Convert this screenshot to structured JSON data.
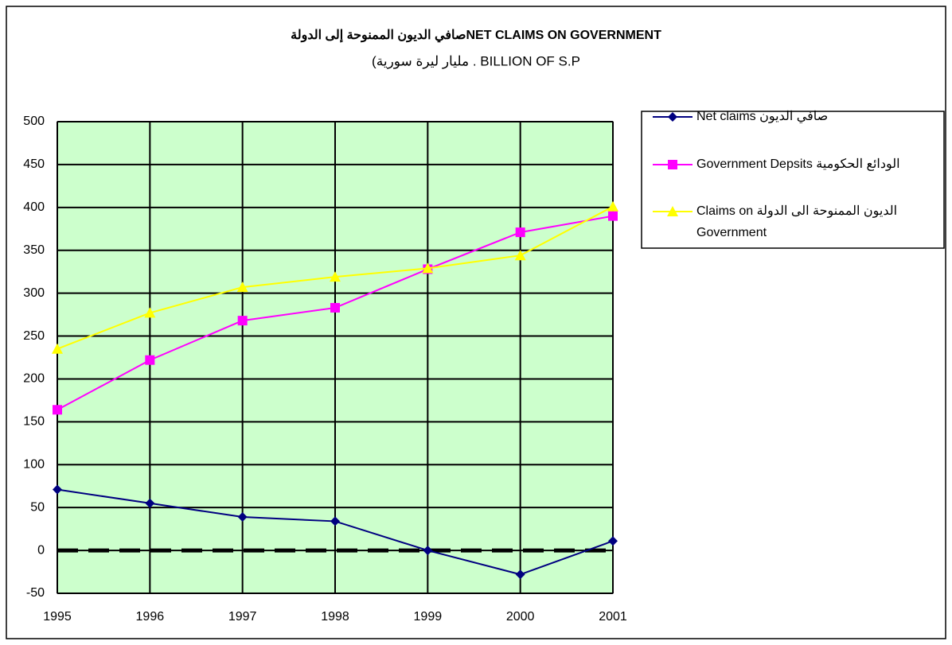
{
  "chart_data": {
    "type": "line",
    "title": "صافي الديون الممنوحة إلى الدولةNET CLAIMS ON GOVERNMENT",
    "subtitle": "(مليار ليرة سورية  .  BILLION OF S.P",
    "categories": [
      "1995",
      "1996",
      "1997",
      "1998",
      "1999",
      "2000",
      "2001"
    ],
    "series": [
      {
        "name": "Net claims صافي الديون",
        "color": "#000080",
        "marker": "diamond",
        "values": [
          71,
          55,
          39,
          34,
          0,
          -28,
          11
        ]
      },
      {
        "name": "Government Depsits الودائع الحكومية",
        "color": "#ff00ff",
        "marker": "square",
        "values": [
          164,
          222,
          268,
          283,
          328,
          371,
          390
        ]
      },
      {
        "name": "Claims on الديون الممنوحة الى الدولة Government",
        "color": "#ffff00",
        "marker": "triangle",
        "values": [
          235,
          277,
          307,
          319,
          329,
          344,
          401
        ]
      }
    ],
    "ylim": [
      -50,
      500
    ],
    "yticks": [
      -50,
      0,
      50,
      100,
      150,
      200,
      250,
      300,
      350,
      400,
      450,
      500
    ],
    "grid": true,
    "reference_line": 0,
    "legend": "right",
    "plot_color": "#ccffcc"
  }
}
